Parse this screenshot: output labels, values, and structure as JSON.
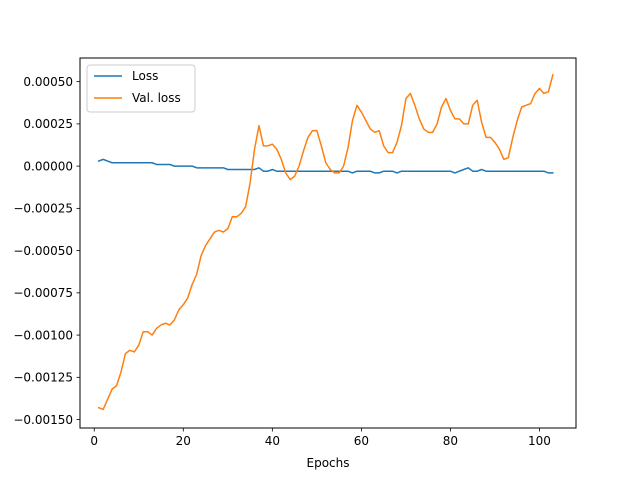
{
  "chart_data": {
    "type": "line",
    "title": "",
    "xlabel": "Epochs",
    "ylabel": "",
    "xlim": [
      -3.2,
      108.2
    ],
    "ylim": [
      -0.00155,
      0.00064
    ],
    "x_ticks": [
      0,
      20,
      40,
      60,
      80,
      100
    ],
    "x_tick_labels": [
      "0",
      "20",
      "40",
      "60",
      "80",
      "100"
    ],
    "y_ticks": [
      -0.0015,
      -0.00125,
      -0.001,
      -0.00075,
      -0.0005,
      -0.00025,
      0.0,
      0.00025,
      0.0005
    ],
    "y_tick_labels": [
      "−0.00150",
      "−0.00125",
      "−0.00100",
      "−0.00075",
      "−0.00050",
      "−0.00025",
      "0.00000",
      "0.00025",
      "0.00050"
    ],
    "grid": false,
    "legend_position": "top-left",
    "series": [
      {
        "name": "Loss",
        "color": "#1f77b4",
        "points": [
          [
            1,
            3e-05
          ],
          [
            2,
            4e-05
          ],
          [
            3,
            3e-05
          ],
          [
            4,
            2e-05
          ],
          [
            5,
            2e-05
          ],
          [
            6,
            2e-05
          ],
          [
            7,
            2e-05
          ],
          [
            8,
            2e-05
          ],
          [
            9,
            2e-05
          ],
          [
            10,
            2e-05
          ],
          [
            11,
            2e-05
          ],
          [
            12,
            2e-05
          ],
          [
            13,
            2e-05
          ],
          [
            14,
            1e-05
          ],
          [
            15,
            1e-05
          ],
          [
            16,
            1e-05
          ],
          [
            17,
            1e-05
          ],
          [
            18,
            0.0
          ],
          [
            19,
            0.0
          ],
          [
            20,
            0.0
          ],
          [
            21,
            0.0
          ],
          [
            22,
            0.0
          ],
          [
            23,
            -1e-05
          ],
          [
            24,
            -1e-05
          ],
          [
            25,
            -1e-05
          ],
          [
            26,
            -1e-05
          ],
          [
            27,
            -1e-05
          ],
          [
            28,
            -1e-05
          ],
          [
            29,
            -1e-05
          ],
          [
            30,
            -2e-05
          ],
          [
            31,
            -2e-05
          ],
          [
            32,
            -2e-05
          ],
          [
            33,
            -2e-05
          ],
          [
            34,
            -2e-05
          ],
          [
            35,
            -2e-05
          ],
          [
            36,
            -2e-05
          ],
          [
            37,
            -1e-05
          ],
          [
            38,
            -3e-05
          ],
          [
            39,
            -3e-05
          ],
          [
            40,
            -2e-05
          ],
          [
            41,
            -3e-05
          ],
          [
            42,
            -3e-05
          ],
          [
            43,
            -3e-05
          ],
          [
            44,
            -3e-05
          ],
          [
            45,
            -3e-05
          ],
          [
            46,
            -3e-05
          ],
          [
            47,
            -3e-05
          ],
          [
            48,
            -3e-05
          ],
          [
            49,
            -3e-05
          ],
          [
            50,
            -3e-05
          ],
          [
            51,
            -3e-05
          ],
          [
            52,
            -3e-05
          ],
          [
            53,
            -3e-05
          ],
          [
            54,
            -3e-05
          ],
          [
            55,
            -3e-05
          ],
          [
            56,
            -3e-05
          ],
          [
            57,
            -3e-05
          ],
          [
            58,
            -4e-05
          ],
          [
            59,
            -3e-05
          ],
          [
            60,
            -3e-05
          ],
          [
            61,
            -3e-05
          ],
          [
            62,
            -3e-05
          ],
          [
            63,
            -4e-05
          ],
          [
            64,
            -4e-05
          ],
          [
            65,
            -3e-05
          ],
          [
            66,
            -3e-05
          ],
          [
            67,
            -3e-05
          ],
          [
            68,
            -4e-05
          ],
          [
            69,
            -3e-05
          ],
          [
            70,
            -3e-05
          ],
          [
            71,
            -3e-05
          ],
          [
            72,
            -3e-05
          ],
          [
            73,
            -3e-05
          ],
          [
            74,
            -3e-05
          ],
          [
            75,
            -3e-05
          ],
          [
            76,
            -3e-05
          ],
          [
            77,
            -3e-05
          ],
          [
            78,
            -3e-05
          ],
          [
            79,
            -3e-05
          ],
          [
            80,
            -3e-05
          ],
          [
            81,
            -4e-05
          ],
          [
            82,
            -3e-05
          ],
          [
            83,
            -2e-05
          ],
          [
            84,
            -1e-05
          ],
          [
            85,
            -3e-05
          ],
          [
            86,
            -3e-05
          ],
          [
            87,
            -2e-05
          ],
          [
            88,
            -3e-05
          ],
          [
            89,
            -3e-05
          ],
          [
            90,
            -3e-05
          ],
          [
            91,
            -3e-05
          ],
          [
            92,
            -3e-05
          ],
          [
            93,
            -3e-05
          ],
          [
            94,
            -3e-05
          ],
          [
            95,
            -3e-05
          ],
          [
            96,
            -3e-05
          ],
          [
            97,
            -3e-05
          ],
          [
            98,
            -3e-05
          ],
          [
            99,
            -3e-05
          ],
          [
            100,
            -3e-05
          ],
          [
            101,
            -3e-05
          ],
          [
            102,
            -4e-05
          ],
          [
            103,
            -4e-05
          ]
        ]
      },
      {
        "name": "Val. loss",
        "color": "#ff7f0e",
        "points": [
          [
            1,
            -0.00143
          ],
          [
            2,
            -0.00144
          ],
          [
            3,
            -0.00138
          ],
          [
            4,
            -0.00132
          ],
          [
            5,
            -0.0013
          ],
          [
            6,
            -0.00122
          ],
          [
            7,
            -0.00111
          ],
          [
            8,
            -0.00109
          ],
          [
            9,
            -0.0011
          ],
          [
            10,
            -0.00106
          ],
          [
            11,
            -0.00098
          ],
          [
            12,
            -0.00098
          ],
          [
            13,
            -0.001
          ],
          [
            14,
            -0.00096
          ],
          [
            15,
            -0.00094
          ],
          [
            16,
            -0.00093
          ],
          [
            17,
            -0.00094
          ],
          [
            18,
            -0.00091
          ],
          [
            19,
            -0.00085
          ],
          [
            20,
            -0.00082
          ],
          [
            21,
            -0.00078
          ],
          [
            22,
            -0.0007
          ],
          [
            23,
            -0.00064
          ],
          [
            24,
            -0.00053
          ],
          [
            25,
            -0.00047
          ],
          [
            26,
            -0.00043
          ],
          [
            27,
            -0.00039
          ],
          [
            28,
            -0.00038
          ],
          [
            29,
            -0.00039
          ],
          [
            30,
            -0.00037
          ],
          [
            31,
            -0.0003
          ],
          [
            32,
            -0.0003
          ],
          [
            33,
            -0.00028
          ],
          [
            34,
            -0.00024
          ],
          [
            35,
            -0.0001
          ],
          [
            36,
            0.0001
          ],
          [
            37,
            0.00024
          ],
          [
            38,
            0.00012
          ],
          [
            39,
            0.00012
          ],
          [
            40,
            0.00013
          ],
          [
            41,
            0.0001
          ],
          [
            42,
            4e-05
          ],
          [
            43,
            -4e-05
          ],
          [
            44,
            -8e-05
          ],
          [
            45,
            -6e-05
          ],
          [
            46,
            0.0
          ],
          [
            47,
            9e-05
          ],
          [
            48,
            0.00017
          ],
          [
            49,
            0.00021
          ],
          [
            50,
            0.00021
          ],
          [
            51,
            0.00012
          ],
          [
            52,
            2e-05
          ],
          [
            53,
            -2e-05
          ],
          [
            54,
            -4e-05
          ],
          [
            55,
            -4e-05
          ],
          [
            56,
            0.0
          ],
          [
            57,
            0.00011
          ],
          [
            58,
            0.00027
          ],
          [
            59,
            0.00036
          ],
          [
            60,
            0.00032
          ],
          [
            61,
            0.00027
          ],
          [
            62,
            0.00022
          ],
          [
            63,
            0.0002
          ],
          [
            64,
            0.00021
          ],
          [
            65,
            0.00012
          ],
          [
            66,
            8e-05
          ],
          [
            67,
            8e-05
          ],
          [
            68,
            0.00014
          ],
          [
            69,
            0.00024
          ],
          [
            70,
            0.0004
          ],
          [
            71,
            0.00043
          ],
          [
            72,
            0.00036
          ],
          [
            73,
            0.00028
          ],
          [
            74,
            0.00022
          ],
          [
            75,
            0.0002
          ],
          [
            76,
            0.0002
          ],
          [
            77,
            0.00025
          ],
          [
            78,
            0.00035
          ],
          [
            79,
            0.0004
          ],
          [
            80,
            0.00033
          ],
          [
            81,
            0.00028
          ],
          [
            82,
            0.00028
          ],
          [
            83,
            0.00025
          ],
          [
            84,
            0.00025
          ],
          [
            85,
            0.00036
          ],
          [
            86,
            0.00039
          ],
          [
            87,
            0.00026
          ],
          [
            88,
            0.00017
          ],
          [
            89,
            0.00017
          ],
          [
            90,
            0.00014
          ],
          [
            91,
            0.0001
          ],
          [
            92,
            4e-05
          ],
          [
            93,
            5e-05
          ],
          [
            94,
            0.00017
          ],
          [
            95,
            0.00027
          ],
          [
            96,
            0.00035
          ],
          [
            97,
            0.00036
          ],
          [
            98,
            0.00037
          ],
          [
            99,
            0.00043
          ],
          [
            100,
            0.00046
          ],
          [
            101,
            0.00043
          ],
          [
            102,
            0.00044
          ],
          [
            103,
            0.00054
          ]
        ]
      }
    ]
  }
}
